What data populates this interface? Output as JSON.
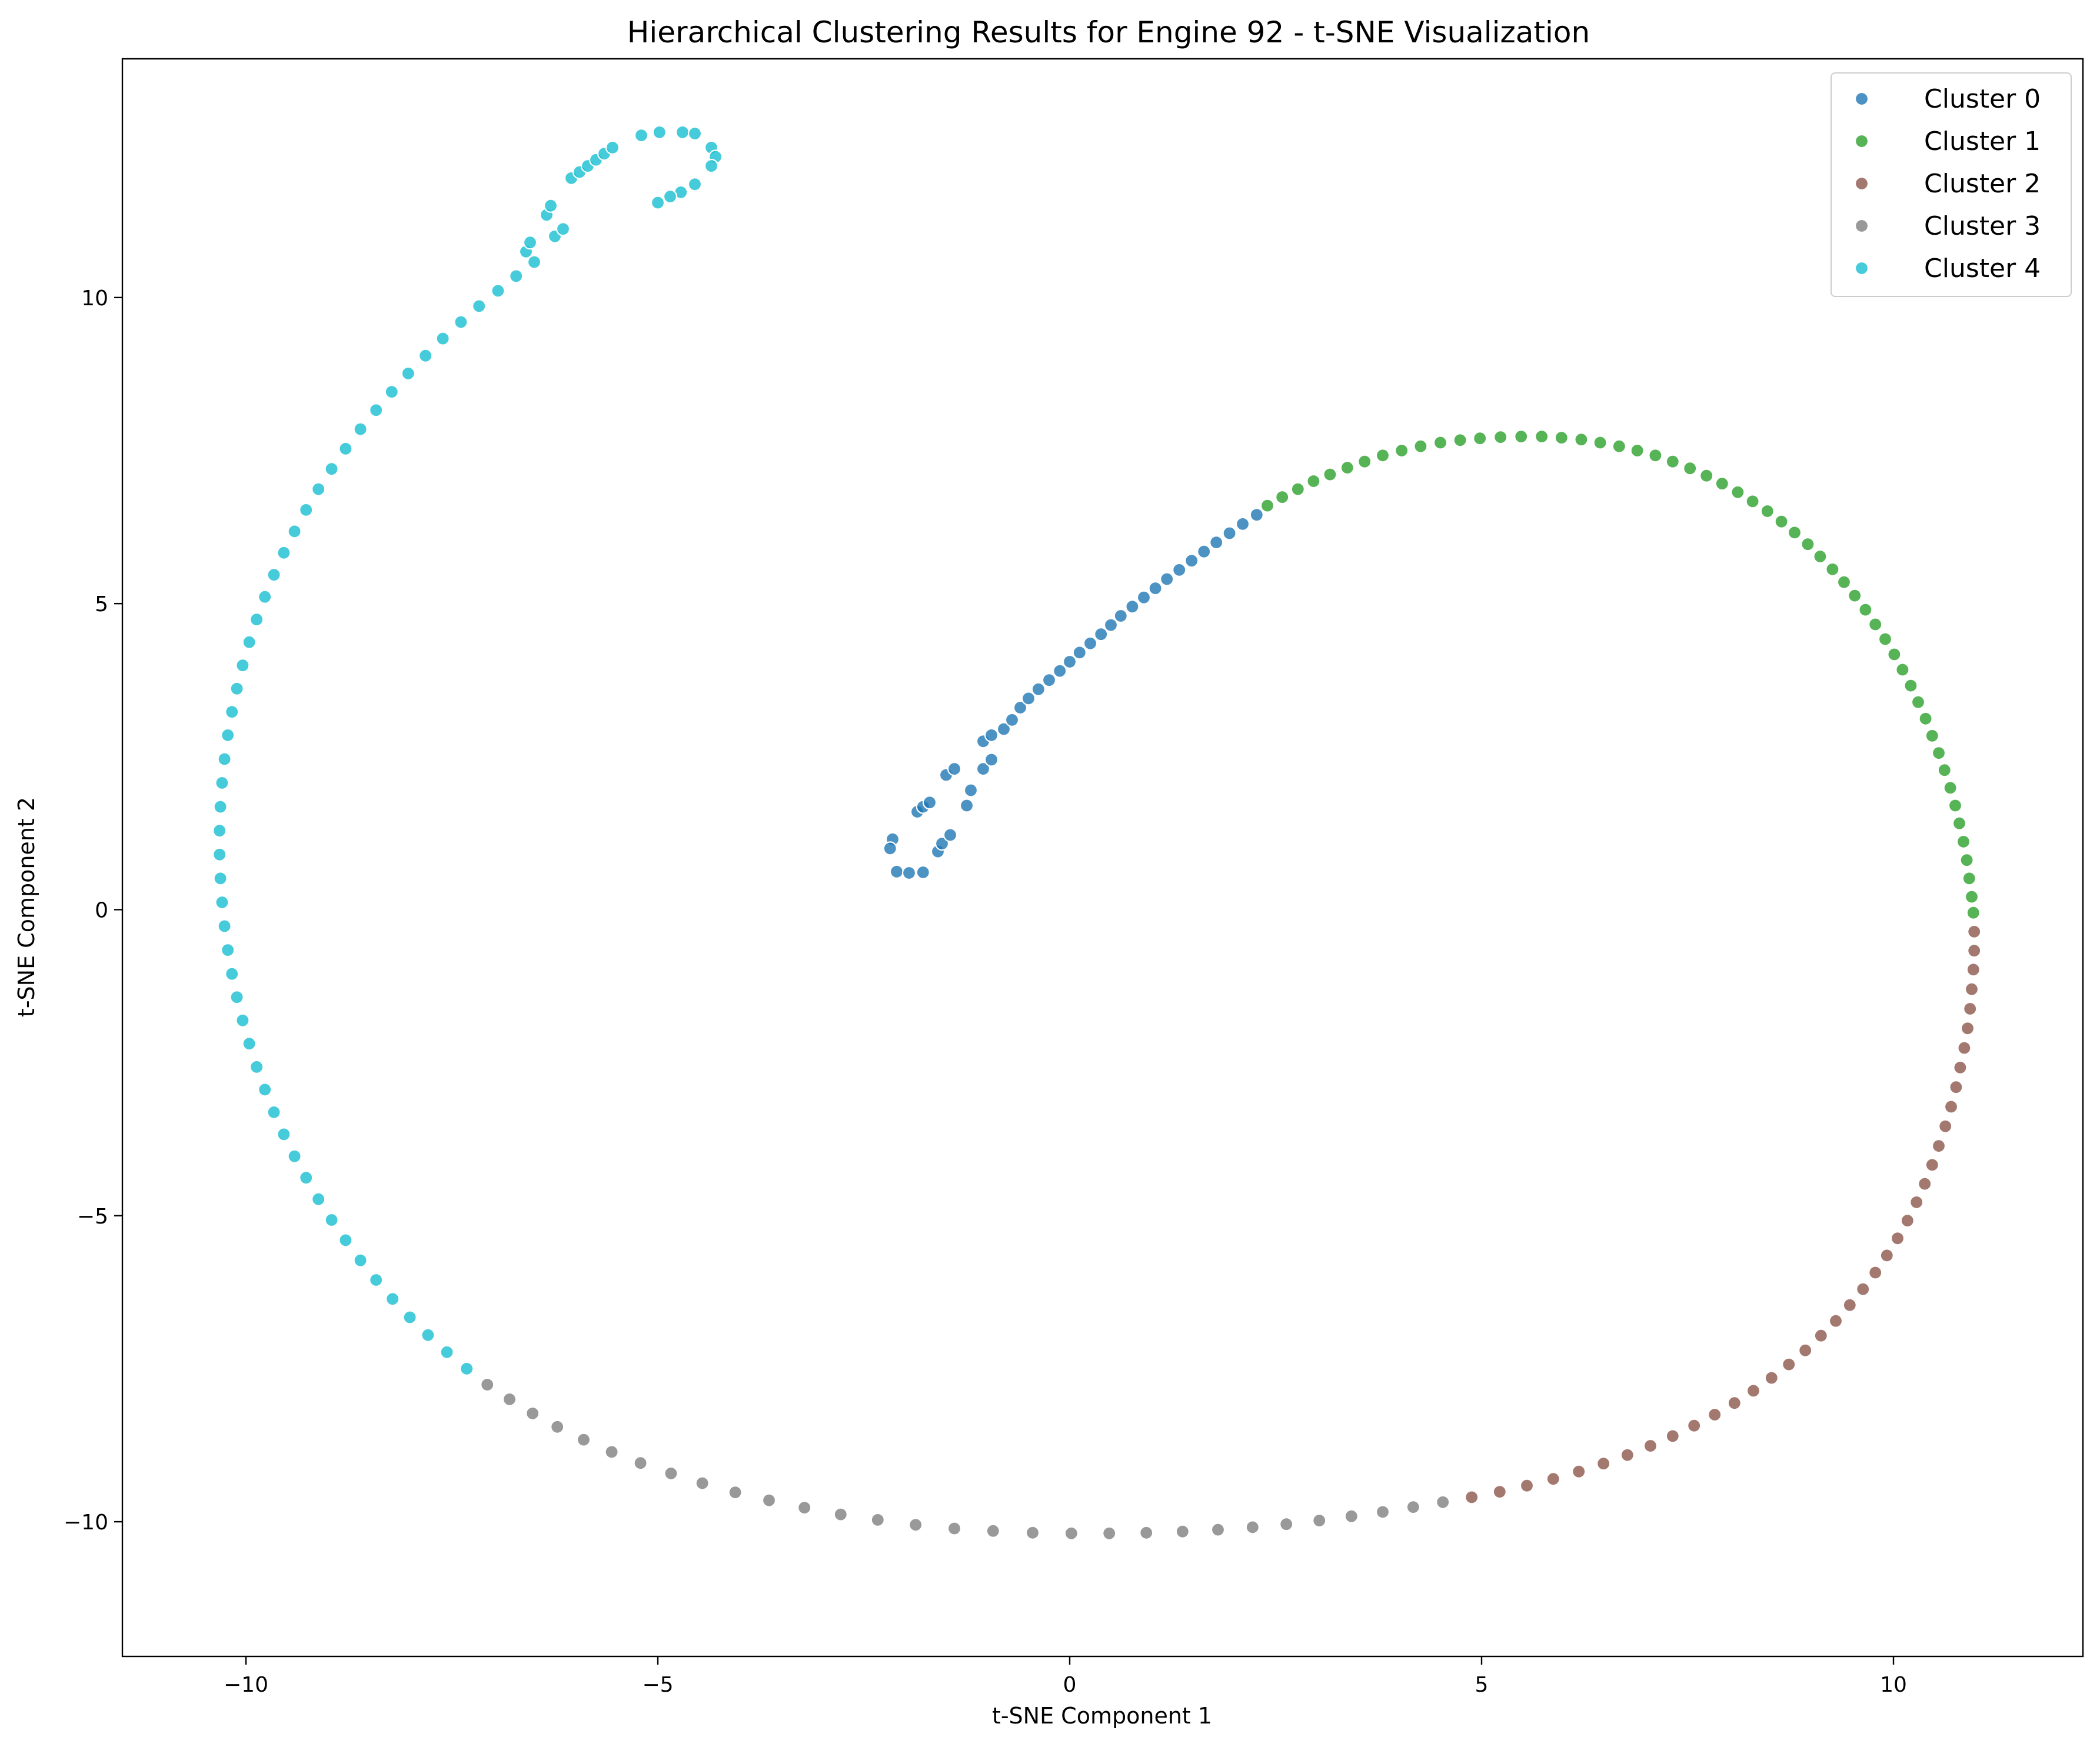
{
  "chart_data": {
    "type": "scatter",
    "title": "Hierarchical Clustering Results for Engine 92 - t-SNE Visualization",
    "xlabel": "t-SNE Component 1",
    "ylabel": "t-SNE Component 2",
    "xlim": [
      -11.5,
      12.3
    ],
    "ylim": [
      -12.2,
      13.9
    ],
    "xticks": [
      -10,
      -5,
      0,
      5,
      10
    ],
    "xtick_labels": [
      "−10",
      "−5",
      "0",
      "5",
      "10"
    ],
    "yticks": [
      -10,
      -5,
      0,
      5,
      10
    ],
    "ytick_labels": [
      "−10",
      "−5",
      "0",
      "5",
      "10"
    ],
    "grid": false,
    "legend_position": "top-right",
    "marker_alpha": 0.8,
    "series": [
      {
        "name": "Cluster 0",
        "color": "#1f77b4",
        "points": [
          [
            -2.15,
            1.15
          ],
          [
            -2.18,
            1.0
          ],
          [
            -2.1,
            0.62
          ],
          [
            -1.95,
            0.6
          ],
          [
            -1.78,
            0.61
          ],
          [
            -1.6,
            0.95
          ],
          [
            -1.55,
            1.08
          ],
          [
            -1.45,
            1.22
          ],
          [
            -1.25,
            1.7
          ],
          [
            -1.2,
            1.95
          ],
          [
            -1.05,
            2.3
          ],
          [
            -0.95,
            2.45
          ],
          [
            -1.05,
            2.75
          ],
          [
            -0.95,
            2.85
          ],
          [
            -0.8,
            2.95
          ],
          [
            -0.7,
            3.1
          ],
          [
            -0.6,
            3.3
          ],
          [
            -0.5,
            3.45
          ],
          [
            -0.38,
            3.6
          ],
          [
            -0.25,
            3.75
          ],
          [
            -0.12,
            3.9
          ],
          [
            0.0,
            4.05
          ],
          [
            0.12,
            4.2
          ],
          [
            0.25,
            4.35
          ],
          [
            0.38,
            4.5
          ],
          [
            0.5,
            4.65
          ],
          [
            0.62,
            4.8
          ],
          [
            0.76,
            4.95
          ],
          [
            0.9,
            5.1
          ],
          [
            1.04,
            5.25
          ],
          [
            1.18,
            5.4
          ],
          [
            1.33,
            5.55
          ],
          [
            1.48,
            5.7
          ],
          [
            1.63,
            5.85
          ],
          [
            1.78,
            6.0
          ],
          [
            1.94,
            6.15
          ],
          [
            2.1,
            6.3
          ],
          [
            2.27,
            6.45
          ],
          [
            -1.85,
            1.6
          ],
          [
            -1.78,
            1.68
          ],
          [
            -1.7,
            1.75
          ],
          [
            -1.5,
            2.2
          ],
          [
            -1.4,
            2.3
          ]
        ]
      },
      {
        "name": "Cluster 1",
        "color": "#2ca02c",
        "points": [
          [
            2.4,
            6.6
          ],
          [
            2.58,
            6.74
          ],
          [
            2.77,
            6.87
          ],
          [
            2.96,
            7.0
          ],
          [
            3.16,
            7.11
          ],
          [
            3.37,
            7.22
          ],
          [
            3.58,
            7.32
          ],
          [
            3.8,
            7.42
          ],
          [
            4.03,
            7.5
          ],
          [
            4.26,
            7.57
          ],
          [
            4.5,
            7.63
          ],
          [
            4.74,
            7.67
          ],
          [
            4.98,
            7.7
          ],
          [
            5.23,
            7.72
          ],
          [
            5.48,
            7.73
          ],
          [
            5.73,
            7.73
          ],
          [
            5.97,
            7.71
          ],
          [
            6.21,
            7.68
          ],
          [
            6.44,
            7.63
          ],
          [
            6.67,
            7.57
          ],
          [
            6.89,
            7.5
          ],
          [
            7.11,
            7.42
          ],
          [
            7.32,
            7.32
          ],
          [
            7.53,
            7.21
          ],
          [
            7.73,
            7.09
          ],
          [
            7.92,
            6.96
          ],
          [
            8.11,
            6.82
          ],
          [
            8.29,
            6.67
          ],
          [
            8.47,
            6.51
          ],
          [
            8.64,
            6.34
          ],
          [
            8.8,
            6.16
          ],
          [
            8.96,
            5.97
          ],
          [
            9.11,
            5.77
          ],
          [
            9.26,
            5.56
          ],
          [
            9.4,
            5.35
          ],
          [
            9.53,
            5.13
          ],
          [
            9.66,
            4.9
          ],
          [
            9.78,
            4.66
          ],
          [
            9.9,
            4.42
          ],
          [
            10.01,
            4.17
          ],
          [
            10.11,
            3.92
          ],
          [
            10.21,
            3.66
          ],
          [
            10.3,
            3.39
          ],
          [
            10.39,
            3.12
          ],
          [
            10.47,
            2.84
          ],
          [
            10.55,
            2.56
          ],
          [
            10.62,
            2.28
          ],
          [
            10.69,
            1.99
          ],
          [
            10.75,
            1.7
          ],
          [
            10.8,
            1.41
          ],
          [
            10.85,
            1.11
          ],
          [
            10.89,
            0.81
          ],
          [
            10.92,
            0.51
          ],
          [
            10.95,
            0.21
          ],
          [
            10.97,
            -0.05
          ]
        ]
      },
      {
        "name": "Cluster 2",
        "color": "#8c564b",
        "points": [
          [
            10.98,
            -0.36
          ],
          [
            10.98,
            -0.67
          ],
          [
            10.97,
            -0.98
          ],
          [
            10.95,
            -1.3
          ],
          [
            10.93,
            -1.62
          ],
          [
            10.9,
            -1.94
          ],
          [
            10.86,
            -2.26
          ],
          [
            10.81,
            -2.58
          ],
          [
            10.76,
            -2.9
          ],
          [
            10.7,
            -3.22
          ],
          [
            10.63,
            -3.54
          ],
          [
            10.55,
            -3.86
          ],
          [
            10.47,
            -4.17
          ],
          [
            10.38,
            -4.48
          ],
          [
            10.28,
            -4.78
          ],
          [
            10.17,
            -5.08
          ],
          [
            10.05,
            -5.37
          ],
          [
            9.92,
            -5.65
          ],
          [
            9.78,
            -5.93
          ],
          [
            9.63,
            -6.2
          ],
          [
            9.47,
            -6.46
          ],
          [
            9.3,
            -6.72
          ],
          [
            9.12,
            -6.96
          ],
          [
            8.93,
            -7.2
          ],
          [
            8.73,
            -7.43
          ],
          [
            8.52,
            -7.65
          ],
          [
            8.3,
            -7.86
          ],
          [
            8.07,
            -8.06
          ],
          [
            7.83,
            -8.25
          ],
          [
            7.58,
            -8.43
          ],
          [
            7.32,
            -8.6
          ],
          [
            7.05,
            -8.76
          ],
          [
            6.77,
            -8.91
          ],
          [
            6.48,
            -9.05
          ],
          [
            6.18,
            -9.18
          ],
          [
            5.87,
            -9.3
          ],
          [
            5.55,
            -9.41
          ],
          [
            5.22,
            -9.51
          ],
          [
            4.88,
            -9.6
          ]
        ]
      },
      {
        "name": "Cluster 3",
        "color": "#7f7f7f",
        "points": [
          [
            4.53,
            -9.68
          ],
          [
            4.17,
            -9.76
          ],
          [
            3.8,
            -9.84
          ],
          [
            3.42,
            -9.91
          ],
          [
            3.03,
            -9.98
          ],
          [
            2.63,
            -10.04
          ],
          [
            2.22,
            -10.09
          ],
          [
            1.8,
            -10.13
          ],
          [
            1.37,
            -10.16
          ],
          [
            0.93,
            -10.18
          ],
          [
            0.48,
            -10.19
          ],
          [
            0.02,
            -10.19
          ],
          [
            -0.45,
            -10.18
          ],
          [
            -0.93,
            -10.15
          ],
          [
            -1.4,
            -10.11
          ],
          [
            -1.87,
            -10.05
          ],
          [
            -2.33,
            -9.97
          ],
          [
            -2.78,
            -9.88
          ],
          [
            -3.22,
            -9.77
          ],
          [
            -3.65,
            -9.65
          ],
          [
            -4.06,
            -9.52
          ],
          [
            -4.46,
            -9.37
          ],
          [
            -4.84,
            -9.21
          ],
          [
            -5.21,
            -9.04
          ],
          [
            -5.56,
            -8.86
          ],
          [
            -5.9,
            -8.66
          ],
          [
            -6.22,
            -8.45
          ],
          [
            -6.52,
            -8.23
          ],
          [
            -6.8,
            -8.0
          ],
          [
            -7.07,
            -7.76
          ]
        ]
      },
      {
        "name": "Cluster 4",
        "color": "#17becf",
        "points": [
          [
            -7.32,
            -7.5
          ],
          [
            -7.56,
            -7.23
          ],
          [
            -7.79,
            -6.95
          ],
          [
            -8.01,
            -6.66
          ],
          [
            -8.22,
            -6.36
          ],
          [
            -8.42,
            -6.05
          ],
          [
            -8.61,
            -5.73
          ],
          [
            -8.79,
            -5.4
          ],
          [
            -8.96,
            -5.07
          ],
          [
            -9.12,
            -4.73
          ],
          [
            -9.27,
            -4.38
          ],
          [
            -9.41,
            -4.03
          ],
          [
            -9.54,
            -3.67
          ],
          [
            -9.66,
            -3.31
          ],
          [
            -9.77,
            -2.94
          ],
          [
            -9.87,
            -2.57
          ],
          [
            -9.96,
            -2.19
          ],
          [
            -10.04,
            -1.81
          ],
          [
            -10.11,
            -1.43
          ],
          [
            -10.17,
            -1.05
          ],
          [
            -10.22,
            -0.66
          ],
          [
            -10.26,
            -0.27
          ],
          [
            -10.29,
            0.12
          ],
          [
            -10.31,
            0.51
          ],
          [
            -10.32,
            0.9
          ],
          [
            -10.32,
            1.29
          ],
          [
            -10.31,
            1.68
          ],
          [
            -10.29,
            2.07
          ],
          [
            -10.26,
            2.46
          ],
          [
            -10.22,
            2.85
          ],
          [
            -10.17,
            3.23
          ],
          [
            -10.11,
            3.61
          ],
          [
            -10.04,
            3.99
          ],
          [
            -9.96,
            4.37
          ],
          [
            -9.87,
            4.74
          ],
          [
            -9.77,
            5.11
          ],
          [
            -9.66,
            5.47
          ],
          [
            -9.54,
            5.83
          ],
          [
            -9.41,
            6.18
          ],
          [
            -9.27,
            6.53
          ],
          [
            -9.12,
            6.87
          ],
          [
            -8.96,
            7.2
          ],
          [
            -8.79,
            7.53
          ],
          [
            -8.61,
            7.85
          ],
          [
            -8.42,
            8.16
          ],
          [
            -8.23,
            8.46
          ],
          [
            -8.03,
            8.76
          ],
          [
            -7.82,
            9.05
          ],
          [
            -7.61,
            9.33
          ],
          [
            -7.39,
            9.6
          ],
          [
            -7.17,
            9.86
          ],
          [
            -6.94,
            10.11
          ],
          [
            -6.72,
            10.35
          ],
          [
            -6.5,
            10.58
          ],
          [
            -6.6,
            10.75
          ],
          [
            -6.55,
            10.9
          ],
          [
            -6.25,
            11.0
          ],
          [
            -6.15,
            11.12
          ],
          [
            -6.35,
            11.35
          ],
          [
            -6.3,
            11.5
          ],
          [
            -6.05,
            11.95
          ],
          [
            -5.95,
            12.05
          ],
          [
            -5.85,
            12.15
          ],
          [
            -5.75,
            12.25
          ],
          [
            -5.65,
            12.35
          ],
          [
            -5.55,
            12.45
          ],
          [
            -5.2,
            12.65
          ],
          [
            -4.98,
            12.7
          ],
          [
            -4.7,
            12.7
          ],
          [
            -4.55,
            12.68
          ],
          [
            -4.35,
            12.45
          ],
          [
            -4.3,
            12.3
          ],
          [
            -4.35,
            12.15
          ],
          [
            -4.55,
            11.85
          ],
          [
            -4.72,
            11.72
          ],
          [
            -4.85,
            11.65
          ],
          [
            -5.0,
            11.55
          ]
        ]
      }
    ]
  }
}
